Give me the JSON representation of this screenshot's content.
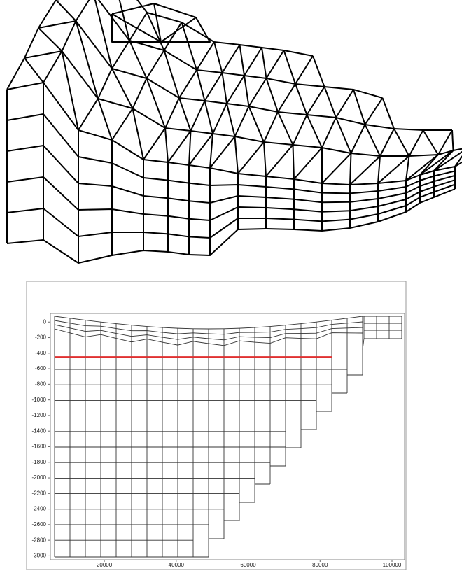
{
  "section": {
    "xlim": [
      5000,
      103500
    ],
    "ylim": [
      -3050,
      110
    ],
    "xticks": [
      20000,
      40000,
      60000,
      80000,
      100000
    ],
    "yticks": [
      0,
      -200,
      -400,
      -600,
      -800,
      -1000,
      -1200,
      -1400,
      -1600,
      -1800,
      -2000,
      -2200,
      -2400,
      -2600,
      -2800,
      -3000
    ],
    "highlight_depth": -450,
    "highlight_color": "#e03030"
  }
}
